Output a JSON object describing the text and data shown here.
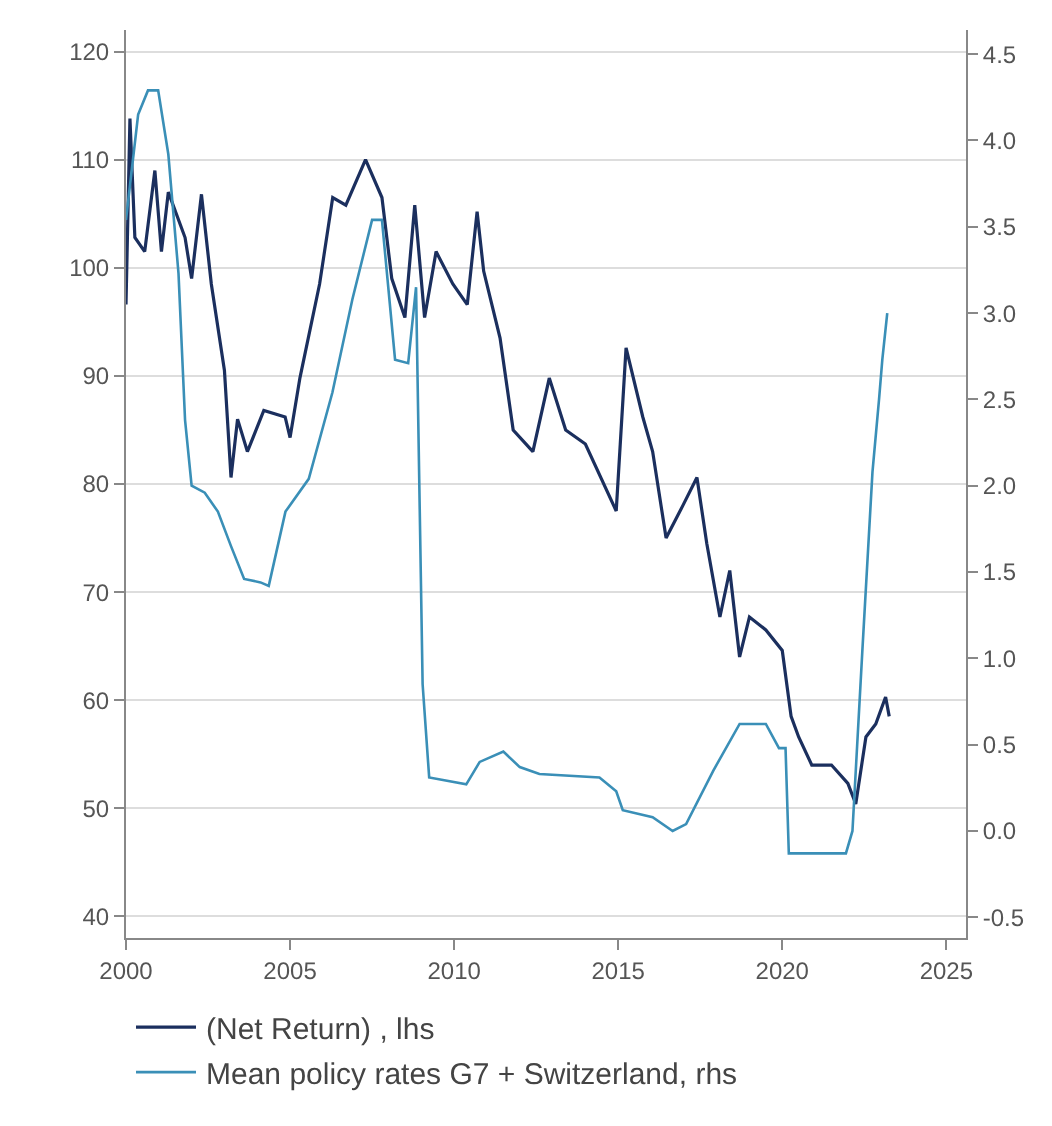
{
  "chart_data": {
    "type": "line",
    "xlim": [
      2000,
      2025.6
    ],
    "xticks": [
      2000,
      2005,
      2010,
      2015,
      2020,
      2025
    ],
    "ylim": [
      38,
      122
    ],
    "yticks": [
      40,
      50,
      60,
      70,
      80,
      90,
      100,
      110,
      120
    ],
    "y2lim": [
      -0.62,
      4.64
    ],
    "y2ticks": [
      {
        "value": -0.5,
        "label": "-0.5"
      },
      {
        "value": 0,
        "label": "0.0"
      },
      {
        "value": 0.5,
        "label": "0.5"
      },
      {
        "value": 1,
        "label": "1.0"
      },
      {
        "value": 1.5,
        "label": "1.5"
      },
      {
        "value": 2,
        "label": "2.0"
      },
      {
        "value": 2.5,
        "label": "2.5"
      },
      {
        "value": 3,
        "label": "3.0"
      },
      {
        "value": 3.5,
        "label": "3.5"
      },
      {
        "value": 4,
        "label": "4.0"
      },
      {
        "value": 4.5,
        "label": "4.5"
      }
    ],
    "grid": "y",
    "legend": "bottom",
    "marker": "none",
    "line_style": "solid",
    "series": [
      {
        "name": "(Net Return) , lhs",
        "color": "#1b2f5e",
        "x": [
          2000.0,
          2000.12,
          2000.27,
          2000.57,
          2000.88,
          2001.08,
          2001.29,
          2001.8,
          2002.0,
          2002.3,
          2002.6,
          2003.0,
          2003.2,
          2003.4,
          2003.7,
          2004.2,
          2004.85,
          2005.0,
          2005.3,
          2005.9,
          2006.3,
          2006.7,
          2007.3,
          2007.8,
          2008.1,
          2008.5,
          2008.8,
          2009.1,
          2009.45,
          2009.96,
          2010.4,
          2010.7,
          2010.9,
          2011.4,
          2011.8,
          2012.4,
          2012.9,
          2013.4,
          2014.0,
          2014.94,
          2015.24,
          2015.75,
          2016.05,
          2016.46,
          2016.97,
          2017.4,
          2017.7,
          2018.1,
          2018.4,
          2018.7,
          2019.0,
          2019.5,
          2020.0,
          2020.27,
          2020.5,
          2020.9,
          2021.5,
          2022.0,
          2022.24,
          2022.55,
          2022.85,
          2023.15,
          2023.26
        ],
        "values": [
          96.6,
          113.8,
          102.8,
          101.5,
          109,
          101.5,
          107,
          102.8,
          99,
          106.8,
          98.5,
          90.5,
          80.6,
          86,
          83,
          86.8,
          86.2,
          84.3,
          89.8,
          98.5,
          106.5,
          105.8,
          110,
          106.5,
          99,
          95.4,
          105.8,
          95.4,
          101.5,
          98.5,
          96.6,
          105.2,
          99.7,
          93.5,
          85,
          83,
          89.8,
          85,
          83.7,
          77.5,
          92.6,
          86.2,
          83,
          75,
          78,
          80.6,
          74.5,
          67.7,
          72,
          64,
          67.7,
          66.5,
          64.6,
          58.5,
          56.6,
          54,
          54,
          52.3,
          50.4,
          56.6,
          57.8,
          60.3,
          58.5
        ]
      },
      {
        "name": "Mean policy rates G7 + Switzerland, rhs",
        "color": "#3a8fb7",
        "axis": "y2",
        "x": [
          2000.0,
          2000.37,
          2000.67,
          2000.98,
          2001.29,
          2001.6,
          2001.8,
          2002.0,
          2002.4,
          2002.8,
          2003.2,
          2003.6,
          2004.1,
          2004.35,
          2004.86,
          2005.57,
          2006.29,
          2006.9,
          2007.5,
          2007.8,
          2008.2,
          2008.6,
          2008.84,
          2009.04,
          2009.24,
          2010.37,
          2010.78,
          2011.5,
          2012.0,
          2012.6,
          2014.43,
          2014.94,
          2015.14,
          2016.05,
          2016.66,
          2017.07,
          2017.9,
          2018.7,
          2019.5,
          2019.9,
          2020.1,
          2020.2,
          2021.94,
          2022.14,
          2022.44,
          2022.75,
          2022.95,
          2023.05,
          2023.2
        ],
        "values": [
          3.54,
          4.15,
          4.29,
          4.29,
          3.92,
          3.23,
          2.38,
          2.0,
          1.96,
          1.85,
          1.65,
          1.46,
          1.44,
          1.42,
          1.85,
          2.04,
          2.54,
          3.08,
          3.54,
          3.54,
          2.73,
          2.71,
          3.15,
          0.85,
          0.31,
          0.27,
          0.4,
          0.46,
          0.37,
          0.33,
          0.31,
          0.23,
          0.12,
          0.08,
          0.0,
          0.04,
          0.35,
          0.62,
          0.62,
          0.48,
          0.48,
          -0.13,
          -0.13,
          0.0,
          1.04,
          2.08,
          2.5,
          2.73,
          3.0
        ]
      }
    ]
  }
}
